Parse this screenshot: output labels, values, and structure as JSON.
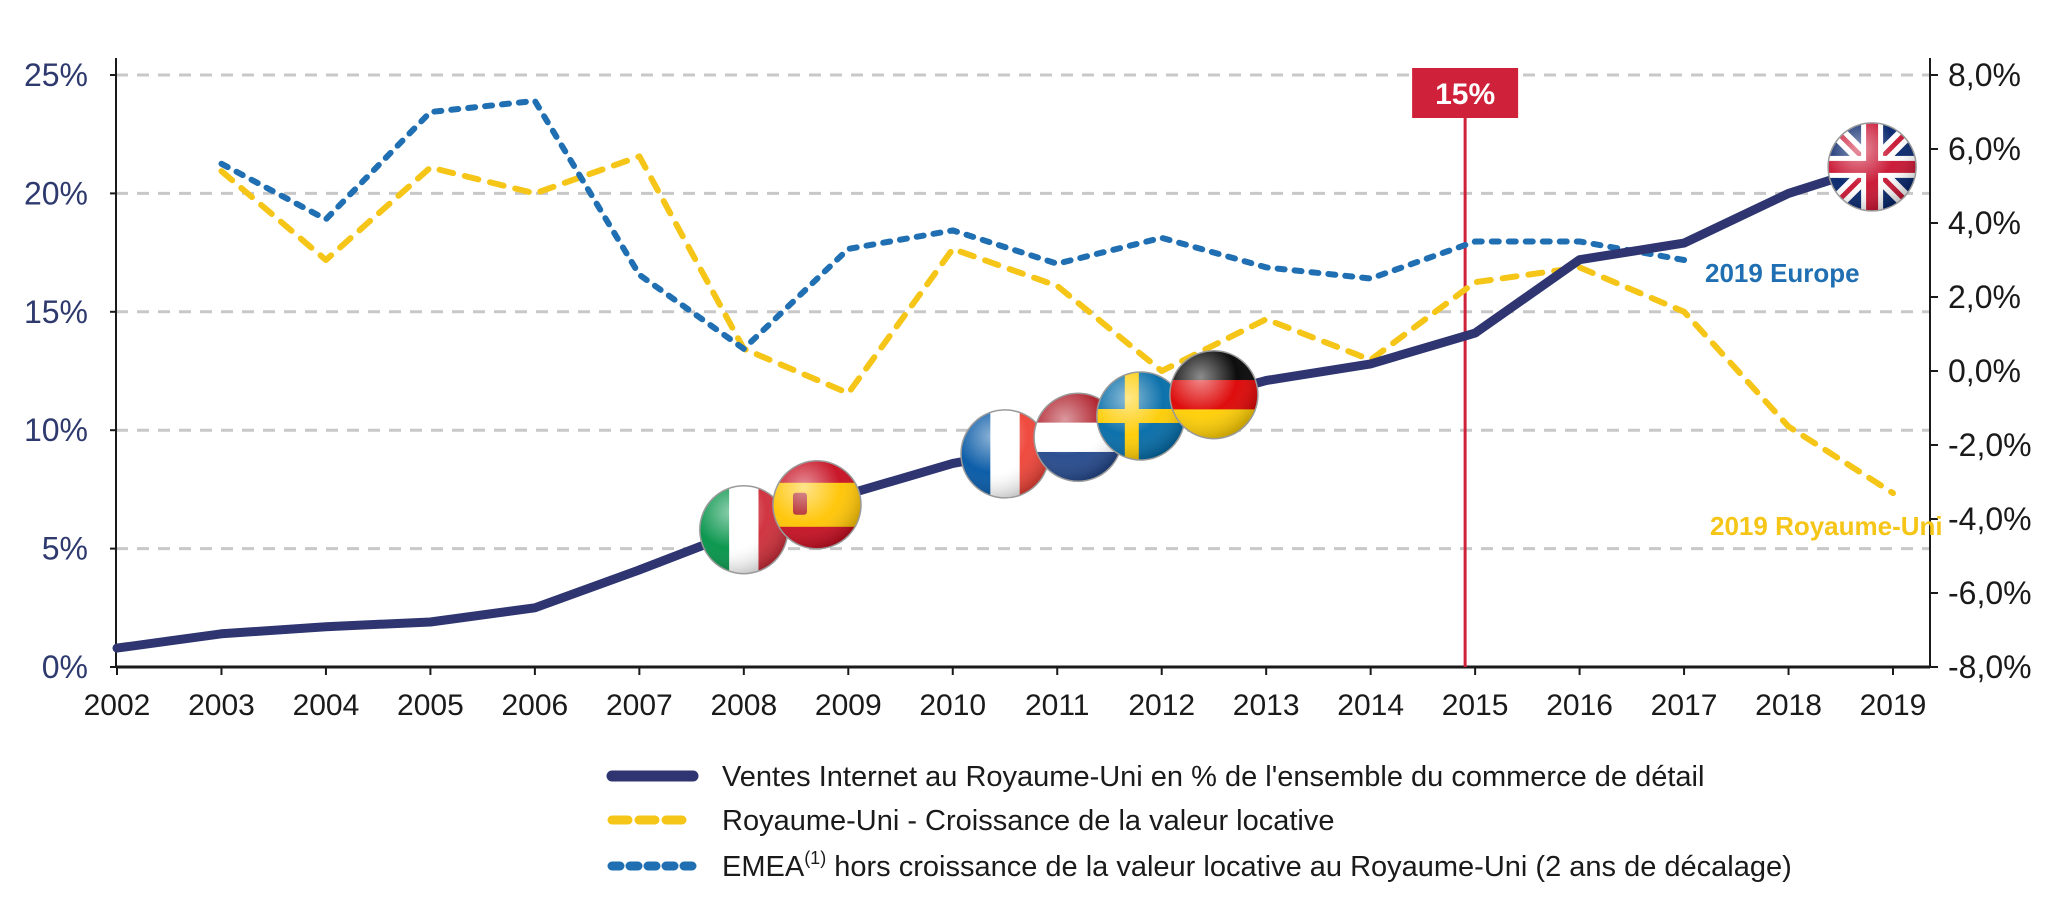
{
  "chart_data": {
    "type": "line",
    "x": [
      2002,
      2003,
      2004,
      2005,
      2006,
      2007,
      2008,
      2009,
      2010,
      2011,
      2012,
      2013,
      2014,
      2015,
      2016,
      2017,
      2018,
      2019
    ],
    "x_tick_labels": [
      "2002",
      "2003",
      "2004",
      "2005",
      "2006",
      "2007",
      "2008",
      "2009",
      "2010",
      "2011",
      "2012",
      "2013",
      "2014",
      "2015",
      "2016",
      "2017",
      "2018",
      "2019"
    ],
    "y_left": {
      "ylim": [
        0,
        25
      ],
      "tick_values": [
        0,
        5,
        10,
        15,
        20,
        25
      ],
      "tick_labels": [
        "0%",
        "5%",
        "10%",
        "15%",
        "20%",
        "25%"
      ]
    },
    "y_right": {
      "ylim": [
        -8,
        8
      ],
      "tick_values": [
        8,
        6,
        4,
        2,
        0,
        -2,
        -4,
        -6,
        -8
      ],
      "tick_labels": [
        "8,0%",
        "6,0%",
        "4,0%",
        "2,0%",
        "0,0%",
        "-2,0%",
        "-4,0%",
        "-6,0%",
        "-8,0%"
      ]
    },
    "grid": "horizontal-dashed",
    "series": [
      {
        "name": "Ventes Internet au Royaume-Uni en % de l'ensemble du commerce de détail",
        "axis": "left",
        "style": "solid",
        "color": "#2e3570",
        "x": [
          2002,
          2003,
          2004,
          2005,
          2006,
          2007,
          2008,
          2009,
          2010,
          2011,
          2012,
          2013,
          2014,
          2015,
          2016,
          2017,
          2018,
          2019
        ],
        "values": [
          0.8,
          1.4,
          1.7,
          1.9,
          2.5,
          4.1,
          5.8,
          7.3,
          8.6,
          9.4,
          10.9,
          12.1,
          12.8,
          14.1,
          17.2,
          17.9,
          20.0,
          21.4
        ]
      },
      {
        "name": "Royaume-Uni - Croissance de la valeur locative",
        "axis": "right",
        "style": "dashed",
        "color": "#f5c518",
        "x": [
          2003,
          2004,
          2005,
          2006,
          2007,
          2008,
          2009,
          2010,
          2011,
          2012,
          2013,
          2014,
          2015,
          2016,
          2017,
          2018,
          2019
        ],
        "values": [
          5.4,
          3.0,
          5.5,
          4.8,
          5.8,
          0.6,
          -0.6,
          3.3,
          2.3,
          0.0,
          1.4,
          0.3,
          2.4,
          2.8,
          1.6,
          -1.5,
          -3.3
        ]
      },
      {
        "name": "EMEA(1) hors croissance de la valeur locative au Royaume-Uni (2 ans de décalage)",
        "axis": "right",
        "style": "dotted",
        "color": "#1f6fb2",
        "x": [
          2003,
          2004,
          2005,
          2006,
          2007,
          2008,
          2009,
          2010,
          2011,
          2012,
          2013,
          2014,
          2015,
          2016,
          2017
        ],
        "values": [
          5.6,
          4.1,
          7.0,
          7.3,
          2.6,
          0.6,
          3.3,
          3.8,
          2.9,
          3.6,
          2.8,
          2.5,
          3.5,
          3.5,
          3.0
        ]
      }
    ],
    "vertical_marker": {
      "x": 2015,
      "label": "15%",
      "color": "#d0213a"
    },
    "annotations": [
      {
        "text": "2019 Europe",
        "color": "#1f6fb2"
      },
      {
        "text": "2019 Royaume-Uni",
        "color": "#f5c518"
      }
    ],
    "legend": {
      "placement": "bottom",
      "items": [
        {
          "text": "Ventes Internet au Royaume-Uni en % de l'ensemble du commerce de détail",
          "sup": ""
        },
        {
          "text": "Royaume-Uni - Croissance de la valeur locative",
          "sup": ""
        },
        {
          "text_before": "EMEA",
          "sup": "(1)",
          "text_after": " hors croissance de la valeur locative au Royaume-Uni (2 ans de décalage)"
        }
      ]
    },
    "flags": [
      {
        "country": "italy",
        "x": 2008.0
      },
      {
        "country": "spain",
        "x": 2008.7
      },
      {
        "country": "france",
        "x": 2010.5
      },
      {
        "country": "netherlands",
        "x": 2011.2
      },
      {
        "country": "sweden",
        "x": 2011.8
      },
      {
        "country": "germany",
        "x": 2012.5
      },
      {
        "country": "united-kingdom",
        "x": 2018.8
      }
    ]
  }
}
